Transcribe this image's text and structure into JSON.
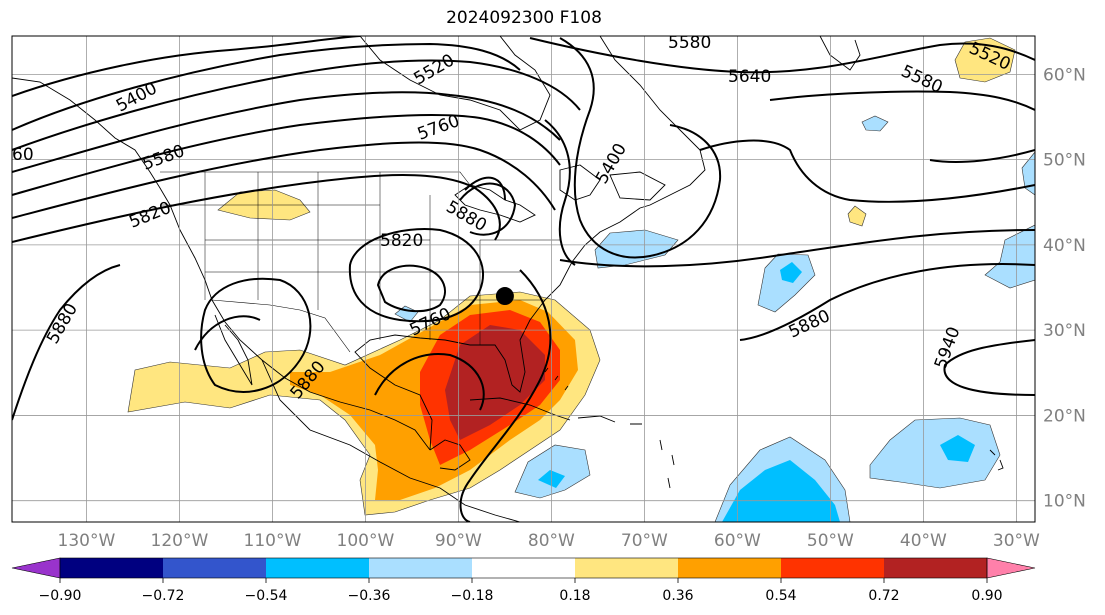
{
  "title": "2024092300 F108",
  "map": {
    "lon_range": [
      -138,
      -28
    ],
    "lat_range": [
      7.5,
      64.5
    ],
    "lon_ticks": [
      {
        "value": -130,
        "label": "130°W"
      },
      {
        "value": -120,
        "label": "120°W"
      },
      {
        "value": -110,
        "label": "110°W"
      },
      {
        "value": -100,
        "label": "100°W"
      },
      {
        "value": -90,
        "label": "90°W"
      },
      {
        "value": -80,
        "label": "80°W"
      },
      {
        "value": -70,
        "label": "70°W"
      },
      {
        "value": -60,
        "label": "60°W"
      },
      {
        "value": -50,
        "label": "50°W"
      },
      {
        "value": -40,
        "label": "40°W"
      },
      {
        "value": -30,
        "label": "30°W"
      }
    ],
    "lat_ticks": [
      {
        "value": 10,
        "label": "10°N"
      },
      {
        "value": 20,
        "label": "20°N"
      },
      {
        "value": 30,
        "label": "30°N"
      },
      {
        "value": 40,
        "label": "40°N"
      },
      {
        "value": 50,
        "label": "50°N"
      },
      {
        "value": 60,
        "label": "60°N"
      }
    ],
    "grid": true,
    "contour_labels": [
      "5400",
      "5580",
      "5820",
      "5880",
      "5520",
      "5760",
      "5580",
      "5640",
      "5580",
      "5520",
      "5880",
      "5820",
      "5760",
      "5880",
      "5880",
      "5940",
      "5400",
      "60"
    ],
    "marker": {
      "lon": -85,
      "lat": 34,
      "label": "black-dot"
    }
  },
  "colorbar": {
    "boundaries": [
      -0.9,
      -0.72,
      -0.54,
      -0.36,
      -0.18,
      0.18,
      0.36,
      0.54,
      0.72,
      0.9
    ],
    "labels": [
      "−0.90",
      "−0.72",
      "−0.54",
      "−0.36",
      "−0.18",
      "0.18",
      "0.36",
      "0.54",
      "0.72",
      "0.90"
    ],
    "colors": [
      "#9933cc",
      "#000080",
      "#3355cc",
      "#00bfff",
      "#aadfff",
      "#ffffff",
      "#ffe680",
      "#ffa000",
      "#ff3300",
      "#b22222",
      "#ff80aa"
    ]
  }
}
